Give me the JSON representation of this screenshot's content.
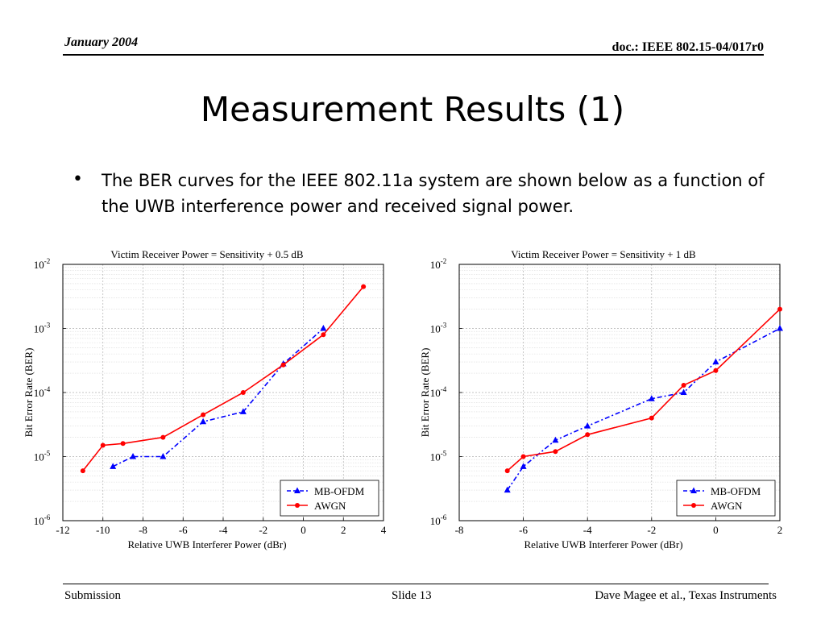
{
  "header": {
    "date": "January 2004",
    "doc": "doc.: IEEE 802.15-04/017r0"
  },
  "slide_title": "Measurement Results (1)",
  "bullet": {
    "text": "The BER curves for the IEEE 802.11a system are shown below as a function of the UWB interference power and received signal power."
  },
  "footer": {
    "left": "Submission",
    "center": "Slide 13",
    "right": "Dave Magee et al., Texas Instruments"
  },
  "chart_data": [
    {
      "type": "line",
      "title": "Victim Receiver Power = Sensitivity + 0.5 dB",
      "xlabel": "Relative UWB Interferer Power (dBr)",
      "ylabel": "Bit Error Rate (BER)",
      "xlim": [
        -12,
        4
      ],
      "ylim": [
        1e-06,
        0.01
      ],
      "yscale": "log",
      "xticks": [
        -12,
        -10,
        -8,
        -6,
        -4,
        -2,
        0,
        2,
        4
      ],
      "yticks": [
        "10-6",
        "10-5",
        "10-4",
        "10-3",
        "10-2"
      ],
      "grid": true,
      "legend_position": "bottom-right",
      "series": [
        {
          "name": "MB-OFDM",
          "color": "#0000ff",
          "dash": "dashed",
          "marker": "triangle",
          "x": [
            -9.5,
            -8.5,
            -7,
            -5,
            -3,
            -1,
            1
          ],
          "y": [
            7e-06,
            1e-05,
            1e-05,
            3.5e-05,
            5e-05,
            0.00028,
            0.001
          ]
        },
        {
          "name": "AWGN",
          "color": "#ff0000",
          "dash": "solid",
          "marker": "circle",
          "x": [
            -11,
            -10,
            -9,
            -7,
            -5,
            -3,
            -1,
            1,
            3
          ],
          "y": [
            6e-06,
            1.5e-05,
            1.6e-05,
            2e-05,
            4.5e-05,
            0.0001,
            0.00027,
            0.0008,
            0.0045
          ]
        }
      ]
    },
    {
      "type": "line",
      "title": "Victim Receiver Power = Sensitivity + 1 dB",
      "xlabel": "Relative UWB Interferer Power (dBr)",
      "ylabel": "Bit Error Rate (BER)",
      "xlim": [
        -8,
        2
      ],
      "ylim": [
        1e-06,
        0.01
      ],
      "yscale": "log",
      "xticks": [
        -8,
        -6,
        -4,
        -2,
        0,
        2
      ],
      "yticks": [
        "10-6",
        "10-5",
        "10-4",
        "10-3",
        "10-2"
      ],
      "grid": true,
      "legend_position": "bottom-right",
      "series": [
        {
          "name": "MB-OFDM",
          "color": "#0000ff",
          "dash": "dashed",
          "marker": "triangle",
          "x": [
            -6.5,
            -6,
            -5,
            -4,
            -2,
            -1,
            0,
            2
          ],
          "y": [
            3e-06,
            7e-06,
            1.8e-05,
            3e-05,
            8e-05,
            0.0001,
            0.0003,
            0.001
          ]
        },
        {
          "name": "AWGN",
          "color": "#ff0000",
          "dash": "solid",
          "marker": "circle",
          "x": [
            -6.5,
            -6,
            -5,
            -4,
            -2,
            -1,
            0,
            2
          ],
          "y": [
            6e-06,
            1e-05,
            1.2e-05,
            2.2e-05,
            4e-05,
            0.00013,
            0.00022,
            0.002
          ]
        }
      ]
    }
  ]
}
